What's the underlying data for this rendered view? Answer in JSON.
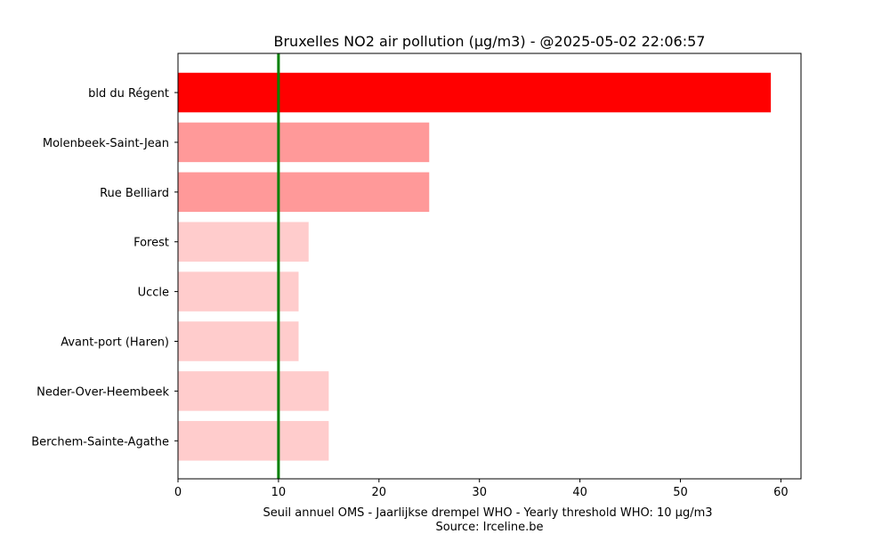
{
  "chart_data": {
    "type": "bar",
    "orientation": "horizontal",
    "title": "Bruxelles NO2 air pollution (µg/m3) - @2025-05-02 22:06:57",
    "xlabel": "Seuil annuel OMS - Jaarlijkse drempel WHO - Yearly threshold WHO: 10 µg/m3",
    "source": "Source: Irceline.be",
    "categories": [
      "bld du Régent",
      "Molenbeek-Saint-Jean",
      "Rue Belliard",
      "Forest",
      "Uccle",
      "Avant-port (Haren)",
      "Neder-Over-Heembeek",
      "Berchem-Sainte-Agathe"
    ],
    "values": [
      59,
      25,
      25,
      13,
      12,
      12,
      15,
      15
    ],
    "bar_colors": [
      "#ff0000",
      "#ff9999",
      "#ff9999",
      "#ffcccc",
      "#ffcccc",
      "#ffcccc",
      "#ffcccc",
      "#ffcccc"
    ],
    "xlim": [
      0,
      62
    ],
    "xticks": [
      0,
      10,
      20,
      30,
      40,
      50,
      60
    ],
    "threshold": {
      "value": 10,
      "color": "#008000"
    },
    "grid": false,
    "legend": "none"
  }
}
